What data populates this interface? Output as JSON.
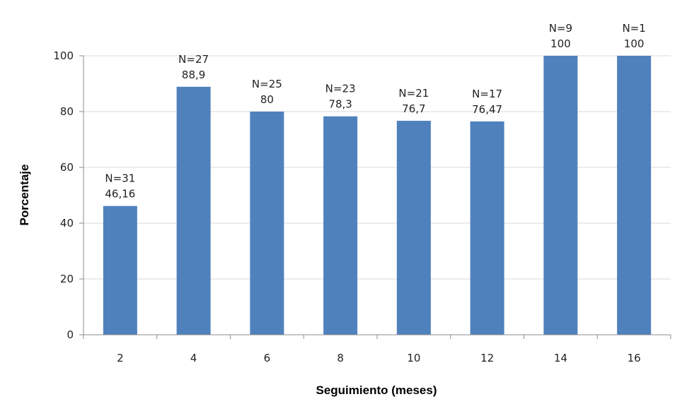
{
  "chart_data": {
    "type": "bar",
    "title": "",
    "xlabel": "Seguimiento (meses)",
    "ylabel": "Porcentaje",
    "categories": [
      "2",
      "4",
      "6",
      "8",
      "10",
      "12",
      "14",
      "16"
    ],
    "values": [
      46.16,
      88.9,
      80,
      78.3,
      76.7,
      76.47,
      100,
      100
    ],
    "data_labels": [
      "46,16",
      "88,9",
      "80",
      "78,3",
      "76,7",
      "76,47",
      "100",
      "100"
    ],
    "n_labels": [
      "N=31",
      "N=27",
      "N=25",
      "N=23",
      "N=21",
      "N=17",
      "N=9",
      "N=1"
    ],
    "ylim": [
      0,
      100
    ],
    "yticks": [
      0,
      20,
      40,
      60,
      80,
      100
    ],
    "grid": true,
    "legend": "none",
    "bar_color": "#4f81bd",
    "grid_color": "#d9d9d9",
    "axis_color": "#8c8c8c"
  }
}
